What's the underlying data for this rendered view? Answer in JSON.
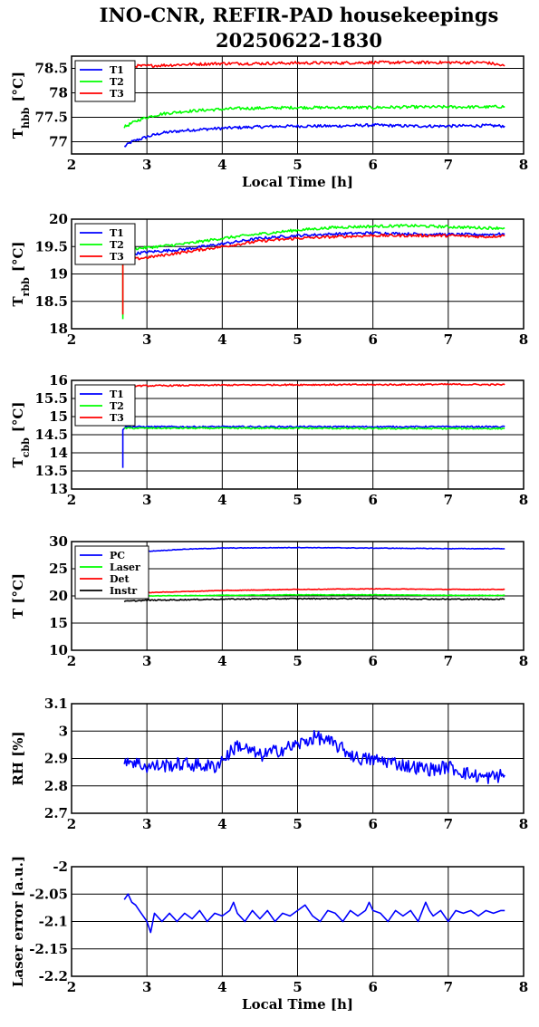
{
  "title": {
    "line1": "INO-CNR, REFIR-PAD housekeepings",
    "line2": "20250622-1830"
  },
  "colors": {
    "blue": "#0000ff",
    "green": "#00ff00",
    "red": "#ff0000",
    "black": "#000000"
  },
  "chart_data": [
    {
      "type": "line",
      "ylabel_main": "T",
      "ylabel_sub": "hbb",
      "ylabel_unit": "[°C]",
      "xlabel": "Local Time [h]",
      "xlim": [
        2,
        8
      ],
      "ylim": [
        76.75,
        78.75
      ],
      "xticks": [
        "2",
        "3",
        "4",
        "5",
        "6",
        "7",
        "8"
      ],
      "yticks": [
        {
          "v": 77,
          "label": "77"
        },
        {
          "v": 77.5,
          "label": "77.5"
        },
        {
          "v": 78,
          "label": "78"
        },
        {
          "v": 78.5,
          "label": "78.5"
        }
      ],
      "legend": "top-left",
      "grid": true,
      "series": [
        {
          "name": "T1",
          "color": "#0000ff",
          "noise": 0.03,
          "x": [
            2.7,
            2.8,
            2.9,
            3.0,
            3.2,
            3.5,
            3.8,
            4.2,
            4.6,
            5.0,
            5.5,
            6.0,
            6.5,
            7.0,
            7.5,
            7.75
          ],
          "y": [
            76.9,
            77.0,
            77.05,
            77.1,
            77.18,
            77.23,
            77.26,
            77.29,
            77.31,
            77.32,
            77.32,
            77.34,
            77.32,
            77.32,
            77.33,
            77.32
          ]
        },
        {
          "name": "T2",
          "color": "#00ff00",
          "noise": 0.03,
          "x": [
            2.7,
            2.8,
            2.9,
            3.0,
            3.2,
            3.5,
            3.8,
            4.2,
            4.6,
            5.0,
            5.5,
            6.0,
            6.5,
            7.0,
            7.5,
            7.75
          ],
          "y": [
            77.3,
            77.38,
            77.45,
            77.5,
            77.57,
            77.62,
            77.65,
            77.68,
            77.69,
            77.7,
            77.7,
            77.7,
            77.71,
            77.71,
            77.71,
            77.72
          ]
        },
        {
          "name": "T3",
          "color": "#ff0000",
          "noise": 0.03,
          "x": [
            2.7,
            3.0,
            3.5,
            4.0,
            4.5,
            5.0,
            5.5,
            6.0,
            6.5,
            7.0,
            7.5,
            7.75
          ],
          "y": [
            78.55,
            78.55,
            78.58,
            78.6,
            78.6,
            78.61,
            78.61,
            78.62,
            78.62,
            78.62,
            78.62,
            78.55
          ]
        }
      ]
    },
    {
      "type": "line",
      "ylabel_main": "T",
      "ylabel_sub": "rbb",
      "ylabel_unit": "[°C]",
      "xlabel": "",
      "xlim": [
        2,
        8
      ],
      "ylim": [
        18,
        20
      ],
      "xticks": [
        "2",
        "3",
        "4",
        "5",
        "6",
        "7",
        "8"
      ],
      "yticks": [
        {
          "v": 18,
          "label": "18"
        },
        {
          "v": 18.5,
          "label": "18.5"
        },
        {
          "v": 19,
          "label": "19"
        },
        {
          "v": 19.5,
          "label": "19.5"
        },
        {
          "v": 20,
          "label": "20"
        }
      ],
      "legend": "top-left",
      "grid": true,
      "series": [
        {
          "name": "T1",
          "color": "#0000ff",
          "noise": 0.025,
          "x": [
            2.7,
            2.72,
            3.0,
            3.5,
            4.0,
            4.5,
            5.0,
            5.5,
            6.0,
            6.5,
            7.0,
            7.5,
            7.75
          ],
          "y": [
            19.25,
            19.35,
            19.4,
            19.45,
            19.55,
            19.65,
            19.7,
            19.73,
            19.75,
            19.73,
            19.72,
            19.72,
            19.73
          ]
        },
        {
          "name": "T2",
          "color": "#00ff00",
          "noise": 0.025,
          "x": [
            2.68,
            2.68,
            2.7,
            3.0,
            3.5,
            4.0,
            4.5,
            5.0,
            5.5,
            6.0,
            6.5,
            7.0,
            7.5,
            7.75
          ],
          "y": [
            18.15,
            19.3,
            19.45,
            19.48,
            19.55,
            19.65,
            19.73,
            19.8,
            19.85,
            19.87,
            19.88,
            19.86,
            19.84,
            19.84
          ]
        },
        {
          "name": "T3",
          "color": "#ff0000",
          "noise": 0.025,
          "x": [
            2.68,
            2.68,
            2.7,
            3.0,
            3.5,
            4.0,
            4.5,
            5.0,
            5.5,
            6.0,
            6.5,
            7.0,
            7.5,
            7.75
          ],
          "y": [
            18.25,
            19.2,
            19.25,
            19.3,
            19.4,
            19.5,
            19.6,
            19.65,
            19.68,
            19.7,
            19.7,
            19.7,
            19.68,
            19.7
          ]
        }
      ]
    },
    {
      "type": "line",
      "ylabel_main": "T",
      "ylabel_sub": "cbb",
      "ylabel_unit": "[°C]",
      "xlabel": "",
      "xlim": [
        2,
        8
      ],
      "ylim": [
        13,
        16
      ],
      "xticks": [
        "2",
        "3",
        "4",
        "5",
        "6",
        "7",
        "8"
      ],
      "yticks": [
        {
          "v": 13,
          "label": "13"
        },
        {
          "v": 13.5,
          "label": "13.5"
        },
        {
          "v": 14,
          "label": "14"
        },
        {
          "v": 14.5,
          "label": "14.5"
        },
        {
          "v": 15,
          "label": "15"
        },
        {
          "v": 15.5,
          "label": "15.5"
        },
        {
          "v": 16,
          "label": "16"
        }
      ],
      "legend": "top-left",
      "grid": true,
      "series": [
        {
          "name": "T1",
          "color": "#0000ff",
          "noise": 0.02,
          "x": [
            2.68,
            2.68,
            2.72,
            3.0,
            4.0,
            5.0,
            6.0,
            7.0,
            7.75
          ],
          "y": [
            13.6,
            14.65,
            14.72,
            14.72,
            14.72,
            14.72,
            14.72,
            14.72,
            14.72
          ]
        },
        {
          "name": "T2",
          "color": "#00ff00",
          "noise": 0.02,
          "x": [
            2.7,
            3.0,
            4.0,
            5.0,
            6.0,
            7.0,
            7.75
          ],
          "y": [
            14.68,
            14.68,
            14.68,
            14.68,
            14.67,
            14.67,
            14.67
          ]
        },
        {
          "name": "T3",
          "color": "#ff0000",
          "noise": 0.02,
          "x": [
            2.7,
            3.0,
            4.0,
            5.0,
            6.0,
            7.0,
            7.75
          ],
          "y": [
            15.85,
            15.85,
            15.87,
            15.88,
            15.88,
            15.89,
            15.88
          ]
        }
      ]
    },
    {
      "type": "line",
      "ylabel_main": "T [°C]",
      "ylabel_sub": "",
      "ylabel_unit": "",
      "xlabel": "",
      "xlim": [
        2,
        8
      ],
      "ylim": [
        10,
        30
      ],
      "xticks": [
        "2",
        "3",
        "4",
        "5",
        "6",
        "7",
        "8"
      ],
      "yticks": [
        {
          "v": 10,
          "label": "10"
        },
        {
          "v": 15,
          "label": "15"
        },
        {
          "v": 20,
          "label": "20"
        },
        {
          "v": 25,
          "label": "25"
        },
        {
          "v": 30,
          "label": "30"
        }
      ],
      "legend": "top-left",
      "grid": true,
      "series": [
        {
          "name": "PC",
          "color": "#0000ff",
          "noise": 0.05,
          "x": [
            2.7,
            3.0,
            3.5,
            4.0,
            5.0,
            6.0,
            7.0,
            7.75
          ],
          "y": [
            27.5,
            28.2,
            28.6,
            28.8,
            28.9,
            28.8,
            28.7,
            28.7
          ]
        },
        {
          "name": "Laser",
          "color": "#00ff00",
          "noise": 0.05,
          "x": [
            2.7,
            3.0,
            4.0,
            5.0,
            6.0,
            7.0,
            7.75
          ],
          "y": [
            19.8,
            20.0,
            20.1,
            20.2,
            20.2,
            20.1,
            20.1
          ]
        },
        {
          "name": "Det",
          "color": "#ff0000",
          "noise": 0.05,
          "x": [
            2.7,
            3.0,
            4.0,
            5.0,
            6.0,
            7.0,
            7.75
          ],
          "y": [
            20.4,
            20.6,
            21.0,
            21.2,
            21.3,
            21.2,
            21.2
          ]
        },
        {
          "name": "Instr",
          "color": "#000000",
          "noise": 0.1,
          "x": [
            2.7,
            3.0,
            4.0,
            5.0,
            6.0,
            7.0,
            7.75
          ],
          "y": [
            19.0,
            19.2,
            19.4,
            19.5,
            19.5,
            19.4,
            19.4
          ]
        }
      ]
    },
    {
      "type": "line",
      "ylabel_main": "RH [%]",
      "ylabel_sub": "",
      "ylabel_unit": "",
      "xlabel": "",
      "xlim": [
        2,
        8
      ],
      "ylim": [
        2.7,
        3.1
      ],
      "xticks": [
        "2",
        "3",
        "4",
        "5",
        "6",
        "7",
        "8"
      ],
      "yticks": [
        {
          "v": 2.7,
          "label": "2.7"
        },
        {
          "v": 2.8,
          "label": "2.8"
        },
        {
          "v": 2.9,
          "label": "2.9"
        },
        {
          "v": 3.0,
          "label": "3"
        },
        {
          "v": 3.1,
          "label": "3.1"
        }
      ],
      "legend": "none",
      "grid": true,
      "series": [
        {
          "name": "",
          "color": "#0000ff",
          "noise": 0.025,
          "x": [
            2.7,
            3.0,
            3.5,
            3.9,
            4.1,
            4.2,
            4.5,
            5.0,
            5.25,
            5.5,
            5.8,
            6.2,
            6.5,
            6.8,
            7.0,
            7.3,
            7.5,
            7.75
          ],
          "y": [
            2.9,
            2.87,
            2.88,
            2.87,
            2.92,
            2.95,
            2.91,
            2.95,
            2.98,
            2.95,
            2.9,
            2.89,
            2.87,
            2.86,
            2.87,
            2.84,
            2.83,
            2.84
          ]
        }
      ]
    },
    {
      "type": "line",
      "ylabel_main": "Laser error [a.u.]",
      "ylabel_sub": "",
      "ylabel_unit": "",
      "xlabel": "Local Time [h]",
      "xlim": [
        2,
        8
      ],
      "ylim": [
        -2.2,
        -2.0
      ],
      "xticks": [
        "2",
        "3",
        "4",
        "5",
        "6",
        "7",
        "8"
      ],
      "yticks": [
        {
          "v": -2.2,
          "label": "-2.2"
        },
        {
          "v": -2.15,
          "label": "-2.15"
        },
        {
          "v": -2.1,
          "label": "-2.1"
        },
        {
          "v": -2.05,
          "label": "-2.05"
        },
        {
          "v": -2.0,
          "label": "-2"
        }
      ],
      "legend": "none",
      "grid": true,
      "series": [
        {
          "name": "",
          "color": "#0000ff",
          "noise": 0.0,
          "x": [
            2.7,
            2.75,
            2.8,
            2.85,
            2.9,
            2.95,
            3.0,
            3.05,
            3.1,
            3.2,
            3.3,
            3.4,
            3.5,
            3.6,
            3.7,
            3.8,
            3.9,
            4.0,
            4.1,
            4.15,
            4.2,
            4.3,
            4.4,
            4.5,
            4.6,
            4.7,
            4.8,
            4.9,
            5.0,
            5.1,
            5.2,
            5.3,
            5.4,
            5.5,
            5.6,
            5.7,
            5.8,
            5.9,
            5.95,
            6.0,
            6.1,
            6.2,
            6.3,
            6.4,
            6.5,
            6.6,
            6.7,
            6.75,
            6.8,
            6.9,
            7.0,
            7.1,
            7.2,
            7.3,
            7.4,
            7.5,
            7.6,
            7.7,
            7.75
          ],
          "y": [
            -2.06,
            -2.05,
            -2.065,
            -2.07,
            -2.08,
            -2.09,
            -2.1,
            -2.12,
            -2.085,
            -2.1,
            -2.085,
            -2.1,
            -2.085,
            -2.095,
            -2.08,
            -2.1,
            -2.085,
            -2.09,
            -2.08,
            -2.065,
            -2.085,
            -2.1,
            -2.08,
            -2.095,
            -2.08,
            -2.1,
            -2.085,
            -2.09,
            -2.08,
            -2.07,
            -2.09,
            -2.1,
            -2.08,
            -2.085,
            -2.1,
            -2.08,
            -2.09,
            -2.08,
            -2.065,
            -2.08,
            -2.085,
            -2.1,
            -2.08,
            -2.09,
            -2.08,
            -2.1,
            -2.065,
            -2.08,
            -2.09,
            -2.08,
            -2.1,
            -2.08,
            -2.085,
            -2.08,
            -2.09,
            -2.08,
            -2.085,
            -2.08,
            -2.08
          ]
        }
      ]
    }
  ]
}
